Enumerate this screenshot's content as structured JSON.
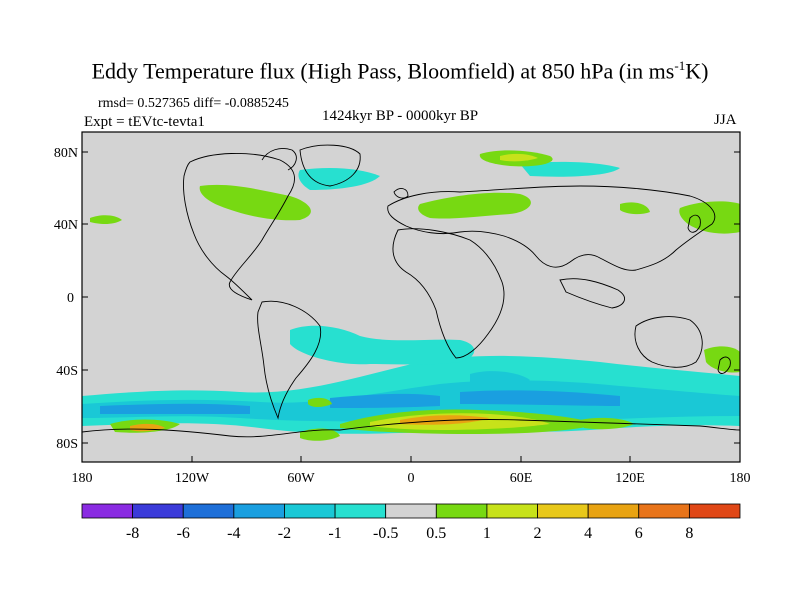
{
  "title_main": "Eddy Temperature flux (High Pass, Bloomfield) at 850 hPa (in ms",
  "title_sup": "-1",
  "title_end": "K)",
  "stats": "rmsd= 0.527365 diff= -0.0885245",
  "expt": "Expt = tEVtc-tevta1",
  "period": "1424kyr BP - 0000kyr BP",
  "season": "JJA",
  "lat_labels": [
    "80N",
    "40N",
    "0",
    "40S",
    "80S"
  ],
  "lon_labels": [
    "180",
    "120W",
    "60W",
    "0",
    "60E",
    "120E",
    "180"
  ],
  "colorbar": {
    "colors": [
      "#8a2be2",
      "#3b3bd9",
      "#1e6fd8",
      "#1a9fe0",
      "#1ac8d6",
      "#27e0d0",
      "#d3d3d3",
      "#77d912",
      "#c7e21a",
      "#e8c81a",
      "#e8a312",
      "#e8741a",
      "#e04716"
    ],
    "labels": [
      "-8",
      "-6",
      "-4",
      "-2",
      "-1",
      "-0.5",
      "0.5",
      "1",
      "2",
      "4",
      "6",
      "8"
    ]
  },
  "colors": {
    "background": "#d3d3d3",
    "negative_light": "#27e0d0",
    "negative_mid": "#1ac8d6",
    "negative_strong": "#1a9fe0",
    "positive_light": "#77d912",
    "positive_mid": "#c7e21a",
    "positive_strong": "#e8a312"
  }
}
